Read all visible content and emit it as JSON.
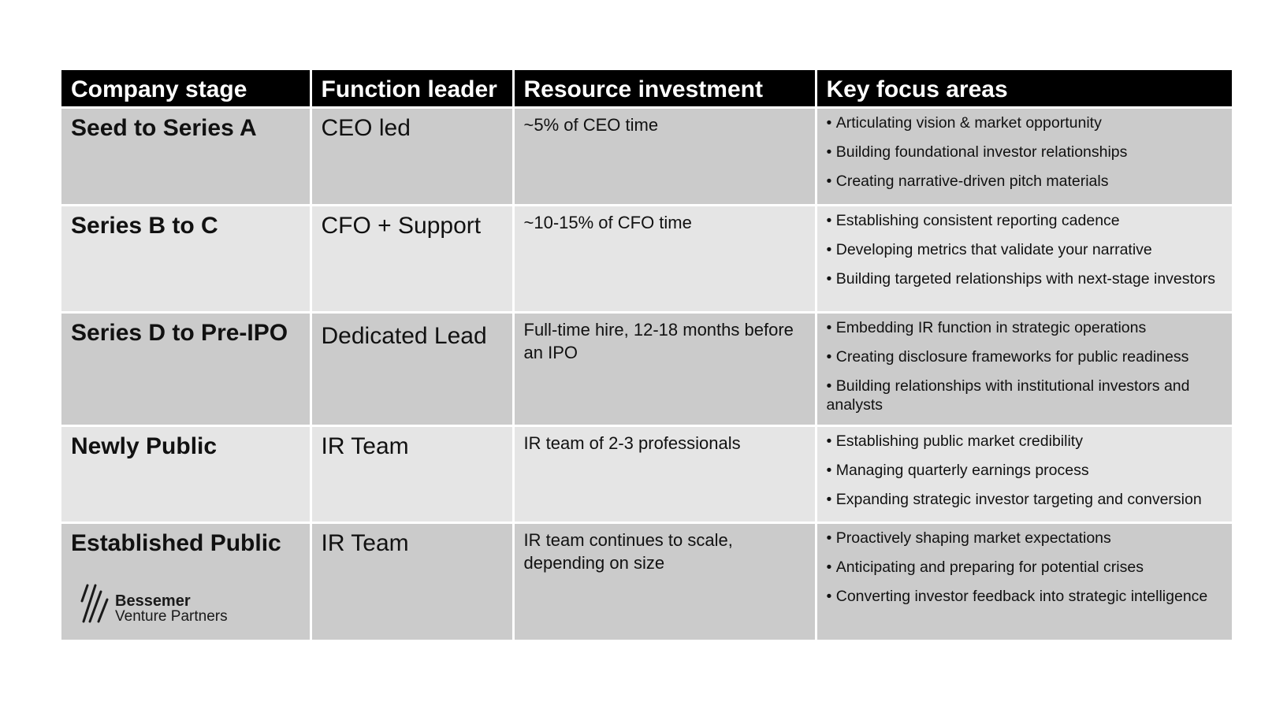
{
  "table": {
    "headers": [
      "Company stage",
      "Function leader",
      "Resource investment",
      "Key focus areas"
    ],
    "rows": [
      {
        "stage": "Seed to Series A",
        "leader": "CEO led",
        "resource": "~5% of CEO time",
        "focus": [
          "Articulating vision & market opportunity",
          "Building foundational investor relationships",
          "Creating narrative-driven pitch materials"
        ]
      },
      {
        "stage": "Series B to C",
        "leader": "CFO + Support",
        "resource": "~10-15% of CFO time",
        "focus": [
          "Establishing consistent reporting cadence",
          "Developing metrics that validate your narrative",
          "Building targeted relationships with next-stage investors"
        ]
      },
      {
        "stage": "Series D to Pre-IPO",
        "leader": "Dedicated Lead",
        "resource": "Full-time hire, 12-18 months before an IPO",
        "focus": [
          "Embedding IR function in strategic operations",
          "Creating disclosure frameworks for public readiness",
          "Building relationships with institutional investors and analysts"
        ]
      },
      {
        "stage": "Newly Public",
        "leader": "IR Team",
        "resource": "IR team of 2-3 professionals",
        "focus": [
          "Establishing public market credibility",
          "Managing quarterly earnings process",
          "Expanding strategic investor targeting and conversion"
        ]
      },
      {
        "stage": "Established Public",
        "leader": "IR Team",
        "resource": "IR team continues to scale, depending on size",
        "focus": [
          "Proactively shaping market expectations",
          "Anticipating and preparing for potential crises",
          "Converting investor feedback into strategic intelligence"
        ]
      }
    ]
  },
  "logo": {
    "name": "Bessemer",
    "sub": "Venture Partners",
    "icon": "bessemer-logo-mark"
  },
  "colors": {
    "header_bg": "#000000",
    "row_dark": "#cbcbcb",
    "row_light": "#e5e5e5"
  }
}
